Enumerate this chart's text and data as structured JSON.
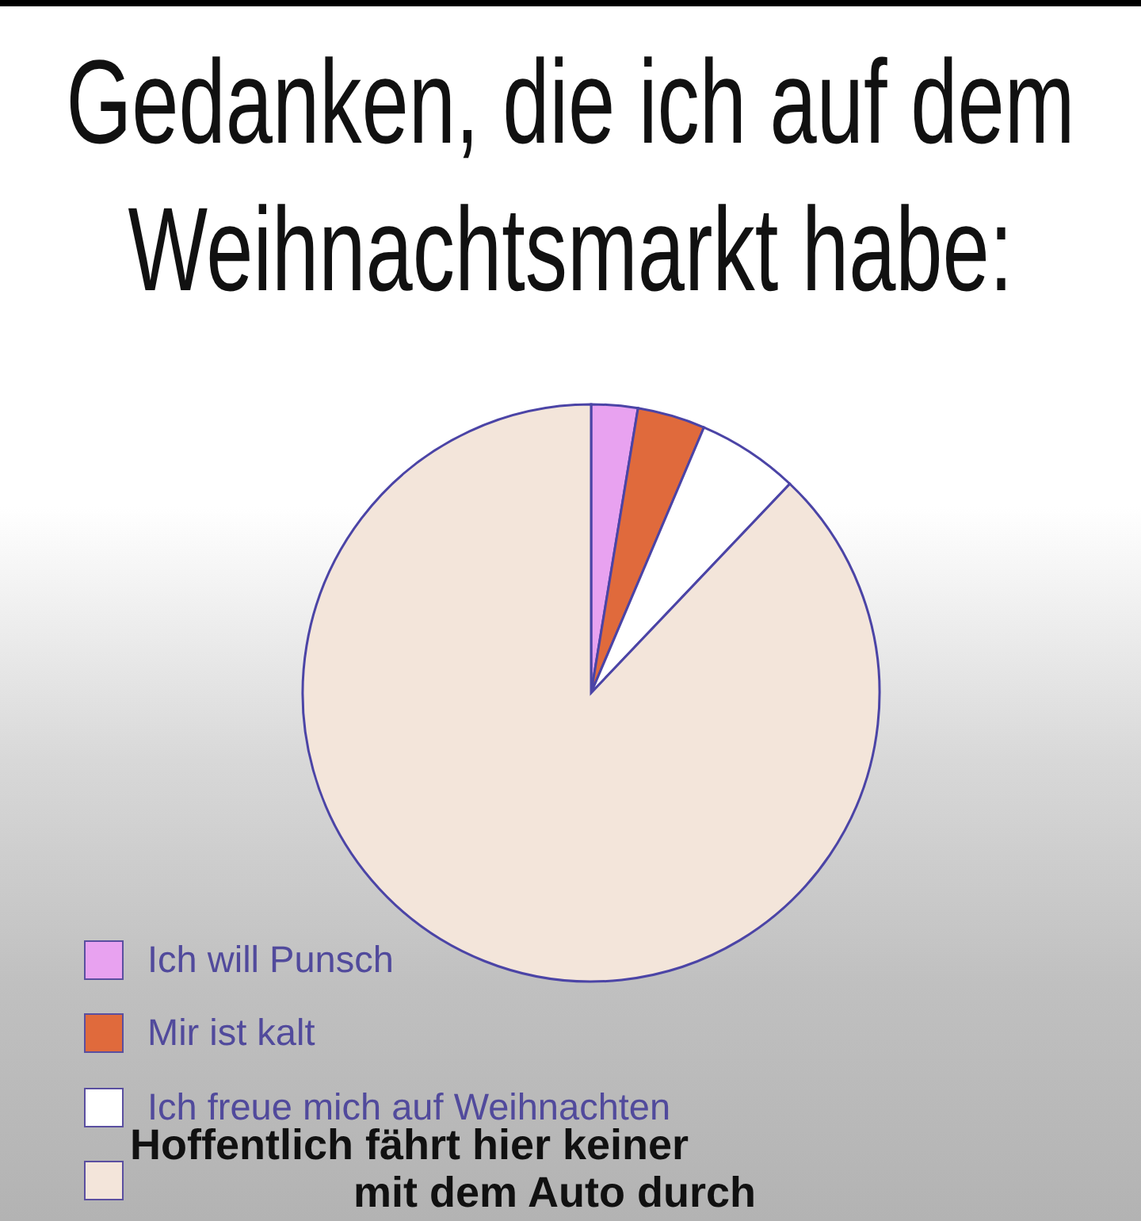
{
  "chart_data": {
    "type": "pie",
    "title": "Gedanken, die ich auf dem Weihnachtsmarkt habe:",
    "categories": [
      "Ich will Punsch",
      "Mir ist kalt",
      "Ich freue mich auf Weihnachten",
      "Hoffentlich fährt hier keiner mit dem Auto durch"
    ],
    "values": [
      2.6,
      3.8,
      5.7,
      87.9
    ],
    "colors": [
      "#e8a2f0",
      "#e06a3c",
      "#ffffff",
      "#f3e5da"
    ],
    "legend": "bottom left"
  }
}
